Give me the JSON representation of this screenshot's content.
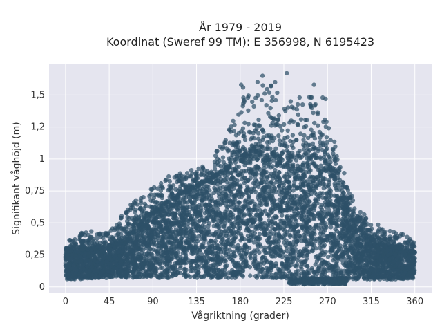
{
  "chart_data": {
    "type": "scatter",
    "title_line1": "År 1979 - 2019",
    "title_line2": "Koordinat (Sweref 99 TM): E 356998, N 6195423",
    "xlabel": "Vågriktning (grader)",
    "ylabel": "Signifikant våghöjd (m)",
    "xlim": [
      -17,
      378
    ],
    "ylim": [
      -0.05,
      1.74
    ],
    "x_ticks": [
      0,
      45,
      90,
      135,
      180,
      225,
      270,
      315,
      360
    ],
    "x_tick_labels": [
      "0",
      "45",
      "90",
      "135",
      "180",
      "225",
      "270",
      "315",
      "360"
    ],
    "y_ticks": [
      0,
      0.25,
      0.5,
      0.75,
      1,
      1.25,
      1.5
    ],
    "y_tick_labels": [
      "0",
      "0,25",
      "0,5",
      "0,75",
      "1",
      "1,2",
      "1,5"
    ],
    "grid": true,
    "background_color": "#e5e5ef",
    "point_color": "#2e5068",
    "envelope": {
      "x": [
        0,
        15,
        30,
        45,
        60,
        75,
        90,
        105,
        120,
        135,
        150,
        165,
        180,
        195,
        210,
        225,
        240,
        255,
        270,
        285,
        300,
        315,
        330,
        345,
        360
      ],
      "bulk_upper": [
        0.27,
        0.29,
        0.3,
        0.32,
        0.38,
        0.48,
        0.58,
        0.66,
        0.73,
        0.78,
        0.84,
        0.92,
        1.02,
        1.06,
        1.04,
        1.0,
        1.02,
        1.05,
        0.95,
        0.72,
        0.48,
        0.37,
        0.32,
        0.3,
        0.27
      ],
      "bulk_lower": [
        0.06,
        0.06,
        0.07,
        0.07,
        0.07,
        0.07,
        0.07,
        0.07,
        0.07,
        0.07,
        0.07,
        0.07,
        0.07,
        0.07,
        0.07,
        0.07,
        0.06,
        0.05,
        0.05,
        0.06,
        0.06,
        0.06,
        0.06,
        0.06,
        0.06
      ],
      "scatter_max": [
        0.35,
        0.42,
        0.44,
        0.42,
        0.6,
        0.7,
        0.78,
        0.86,
        0.9,
        0.92,
        0.98,
        1.2,
        1.45,
        1.62,
        1.62,
        1.45,
        1.48,
        1.5,
        1.3,
        0.96,
        0.62,
        0.52,
        0.45,
        0.42,
        0.4
      ]
    },
    "outliers": [
      {
        "x": 181,
        "y": 1.58
      },
      {
        "x": 183,
        "y": 1.56
      },
      {
        "x": 188,
        "y": 1.48
      },
      {
        "x": 203,
        "y": 1.65
      },
      {
        "x": 216,
        "y": 1.6
      },
      {
        "x": 228,
        "y": 1.67
      },
      {
        "x": 256,
        "y": 1.58
      },
      {
        "x": 265,
        "y": 1.48
      },
      {
        "x": 268,
        "y": 1.47
      },
      {
        "x": 210,
        "y": 1.52
      },
      {
        "x": 207,
        "y": 1.42
      },
      {
        "x": 232,
        "y": 1.45
      }
    ]
  }
}
